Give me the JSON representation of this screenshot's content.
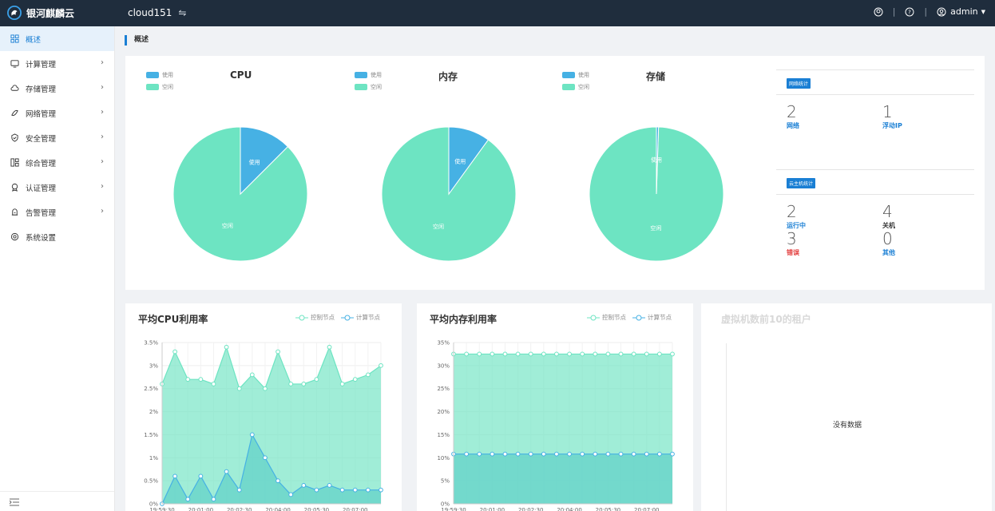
{
  "app": {
    "brand": "银河麒麟云",
    "cluster": "cloud151",
    "user": "admin"
  },
  "sidebar": {
    "items": [
      {
        "label": "概述",
        "icon": "grid-icon",
        "active": true,
        "chevron": false
      },
      {
        "label": "计算管理",
        "icon": "monitor-icon",
        "chevron": true
      },
      {
        "label": "存储管理",
        "icon": "cloud-icon",
        "chevron": true
      },
      {
        "label": "网络管理",
        "icon": "network-icon",
        "chevron": true
      },
      {
        "label": "安全管理",
        "icon": "shield-icon",
        "chevron": true
      },
      {
        "label": "综合管理",
        "icon": "dashboard-icon",
        "chevron": true
      },
      {
        "label": "认证管理",
        "icon": "badge-icon",
        "chevron": true
      },
      {
        "label": "告警管理",
        "icon": "alarm-icon",
        "chevron": true
      },
      {
        "label": "系统设置",
        "icon": "settings-icon",
        "chevron": false
      }
    ]
  },
  "breadcrumb": "概述",
  "pies": [
    {
      "title": "CPU",
      "legend_used": "使用",
      "legend_free": "空闲",
      "used_fraction": 0.125,
      "label_used": "使用",
      "label_free": "空闲"
    },
    {
      "title": "内存",
      "legend_used": "使用",
      "legend_free": "空闲",
      "used_fraction": 0.1,
      "label_used": "使用",
      "label_free": "空闲"
    },
    {
      "title": "存储",
      "legend_used": "使用",
      "legend_free": "空闲",
      "used_fraction": 0.005,
      "label_used": "使用",
      "label_free": "空闲"
    }
  ],
  "colors": {
    "used": "#46b1e4",
    "free": "#6de4c2",
    "accent": "#1a7fd4",
    "error": "#e23a3a",
    "topbar": "#1f2d3d"
  },
  "network_stats": {
    "tag": "网络统计",
    "items": [
      {
        "value": "2",
        "label": "网络"
      },
      {
        "value": "1",
        "label": "浮动IP"
      }
    ]
  },
  "vm_stats": {
    "tag": "云主机统计",
    "items": [
      {
        "value": "2",
        "label": "运行中"
      },
      {
        "value": "4",
        "label": "关机"
      },
      {
        "value": "3",
        "label": "错误"
      },
      {
        "value": "0",
        "label": "其他"
      }
    ]
  },
  "cpu_chart": {
    "title": "平均CPU利用率",
    "legend": [
      "控制节点",
      "计算节点"
    ]
  },
  "mem_chart": {
    "title": "平均内存利用率",
    "legend": [
      "控制节点",
      "计算节点"
    ]
  },
  "tenants": {
    "title": "虚拟机数前10的租户",
    "empty": "没有数据"
  },
  "chart_data": [
    {
      "type": "area",
      "title": "平均CPU利用率",
      "x": [
        "19:59:30",
        "20:00:00",
        "20:00:30",
        "20:01:00",
        "20:01:30",
        "20:02:00",
        "20:02:30",
        "20:03:00",
        "20:03:30",
        "20:04:00",
        "20:04:30",
        "20:05:00",
        "20:05:30",
        "20:06:00",
        "20:06:30",
        "20:07:00",
        "20:07:30",
        "20:08:00"
      ],
      "x_tick_labels": [
        "19:59:30",
        "20:01:00",
        "20:02:30",
        "20:04:00",
        "20:05:30",
        "20:07:00"
      ],
      "y_ticks": [
        "0%",
        "0.5%",
        "1%",
        "1.5%",
        "2%",
        "2.5%",
        "3%",
        "3.5%"
      ],
      "ylim": [
        0,
        3.5
      ],
      "series": [
        {
          "name": "控制节点",
          "values": [
            2.6,
            3.3,
            2.7,
            2.7,
            2.6,
            3.4,
            2.5,
            2.8,
            2.5,
            3.3,
            2.6,
            2.6,
            2.7,
            3.4,
            2.6,
            2.7,
            2.8,
            3.0
          ]
        },
        {
          "name": "计算节点",
          "values": [
            0,
            0.6,
            0.1,
            0.6,
            0.1,
            0.7,
            0.3,
            1.5,
            1.0,
            0.5,
            0.2,
            0.4,
            0.3,
            0.4,
            0.3,
            0.3,
            0.3,
            0.3
          ]
        }
      ]
    },
    {
      "type": "area",
      "title": "平均内存利用率",
      "x": [
        "19:59:30",
        "20:00:00",
        "20:00:30",
        "20:01:00",
        "20:01:30",
        "20:02:00",
        "20:02:30",
        "20:03:00",
        "20:03:30",
        "20:04:00",
        "20:04:30",
        "20:05:00",
        "20:05:30",
        "20:06:00",
        "20:06:30",
        "20:07:00",
        "20:07:30",
        "20:08:00"
      ],
      "x_tick_labels": [
        "19:59:30",
        "20:01:00",
        "20:02:30",
        "20:04:00",
        "20:05:30",
        "20:07:00"
      ],
      "y_ticks": [
        "0%",
        "5%",
        "10%",
        "15%",
        "20%",
        "25%",
        "30%",
        "35%"
      ],
      "ylim": [
        0,
        35
      ],
      "series": [
        {
          "name": "控制节点",
          "values": [
            32.5,
            32.5,
            32.5,
            32.5,
            32.5,
            32.5,
            32.5,
            32.5,
            32.5,
            32.5,
            32.5,
            32.5,
            32.5,
            32.5,
            32.5,
            32.5,
            32.5,
            32.5
          ]
        },
        {
          "name": "计算节点",
          "values": [
            10.8,
            10.8,
            10.8,
            10.8,
            10.8,
            10.8,
            10.8,
            10.8,
            10.8,
            10.8,
            10.8,
            10.8,
            10.8,
            10.8,
            10.8,
            10.8,
            10.8,
            10.8
          ]
        }
      ]
    }
  ]
}
